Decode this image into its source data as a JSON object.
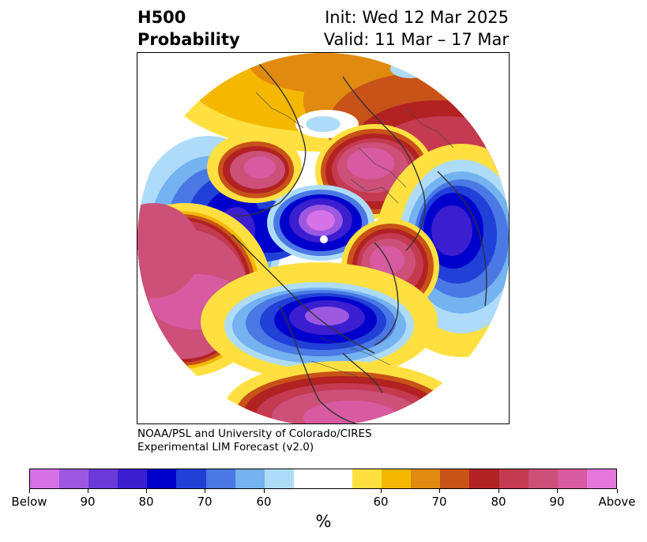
{
  "header": {
    "title_line1": "H500",
    "title_line2": "Probability",
    "init": "Init: Wed 12 Mar 2025",
    "valid": "Valid: 11 Mar – 17 Mar"
  },
  "credit": {
    "line1": "NOAA/PSL and University of Colorado/CIRES",
    "line2": "Experimental LIM Forecast (v2.0)"
  },
  "colorbar": {
    "unit": "%",
    "colors": [
      "#d672e8",
      "#9c58e0",
      "#6c3ad8",
      "#3a1ed0",
      "#0000cc",
      "#2040d8",
      "#4a78e4",
      "#74b2f0",
      "#aedcf8",
      "#ffffff",
      "#ffe040",
      "#f4b800",
      "#e08a10",
      "#c85218",
      "#b22222",
      "#c43a50",
      "#cc5078",
      "#d85aa0",
      "#e676dc"
    ],
    "tick_labels": [
      "Below",
      "90",
      "80",
      "70",
      "60",
      "60",
      "70",
      "80",
      "90",
      "Above"
    ]
  },
  "map": {
    "projection": "north-polar-stereographic",
    "palette": {
      "blue1": "#aedcf8",
      "blue2": "#74b2f0",
      "blue3": "#4a78e4",
      "blue4": "#2040d8",
      "blue5": "#0000cc",
      "blue6": "#3a1ed0",
      "blue7": "#9c58e0",
      "yel1": "#ffe040",
      "yel2": "#f4b800",
      "yel3": "#e08a10",
      "red1": "#c85218",
      "red2": "#b22222",
      "red3": "#c43a50",
      "red4": "#cc5078",
      "red5": "#d85aa0"
    }
  }
}
